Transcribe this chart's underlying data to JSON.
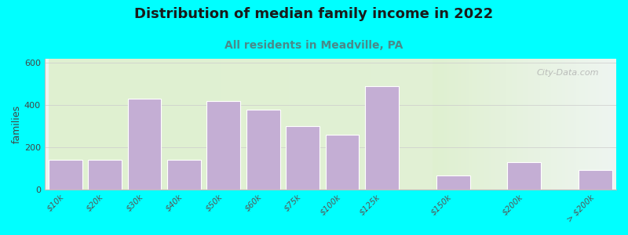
{
  "title": "Distribution of median family income in 2022",
  "subtitle": "All residents in Meadville, PA",
  "ylabel": "families",
  "background_color": "#00FFFF",
  "plot_bg_left": "#dff0d0",
  "plot_bg_right": "#eef5f0",
  "bar_color": "#c4aed4",
  "bar_edge_color": "#ffffff",
  "categories": [
    "$10k",
    "$20k",
    "$30k",
    "$40k",
    "$50k",
    "$60k",
    "$75k",
    "$100k",
    "$125k",
    "$150k",
    "$200k",
    "> $200k"
  ],
  "values": [
    140,
    140,
    430,
    140,
    420,
    378,
    300,
    258,
    490,
    65,
    130,
    90
  ],
  "ylim": [
    0,
    620
  ],
  "yticks": [
    0,
    200,
    400,
    600
  ],
  "watermark": "City-Data.com",
  "title_fontsize": 13,
  "subtitle_fontsize": 10,
  "ylabel_fontsize": 9,
  "subtitle_color": "#4a8a8a",
  "title_color": "#1a1a1a"
}
